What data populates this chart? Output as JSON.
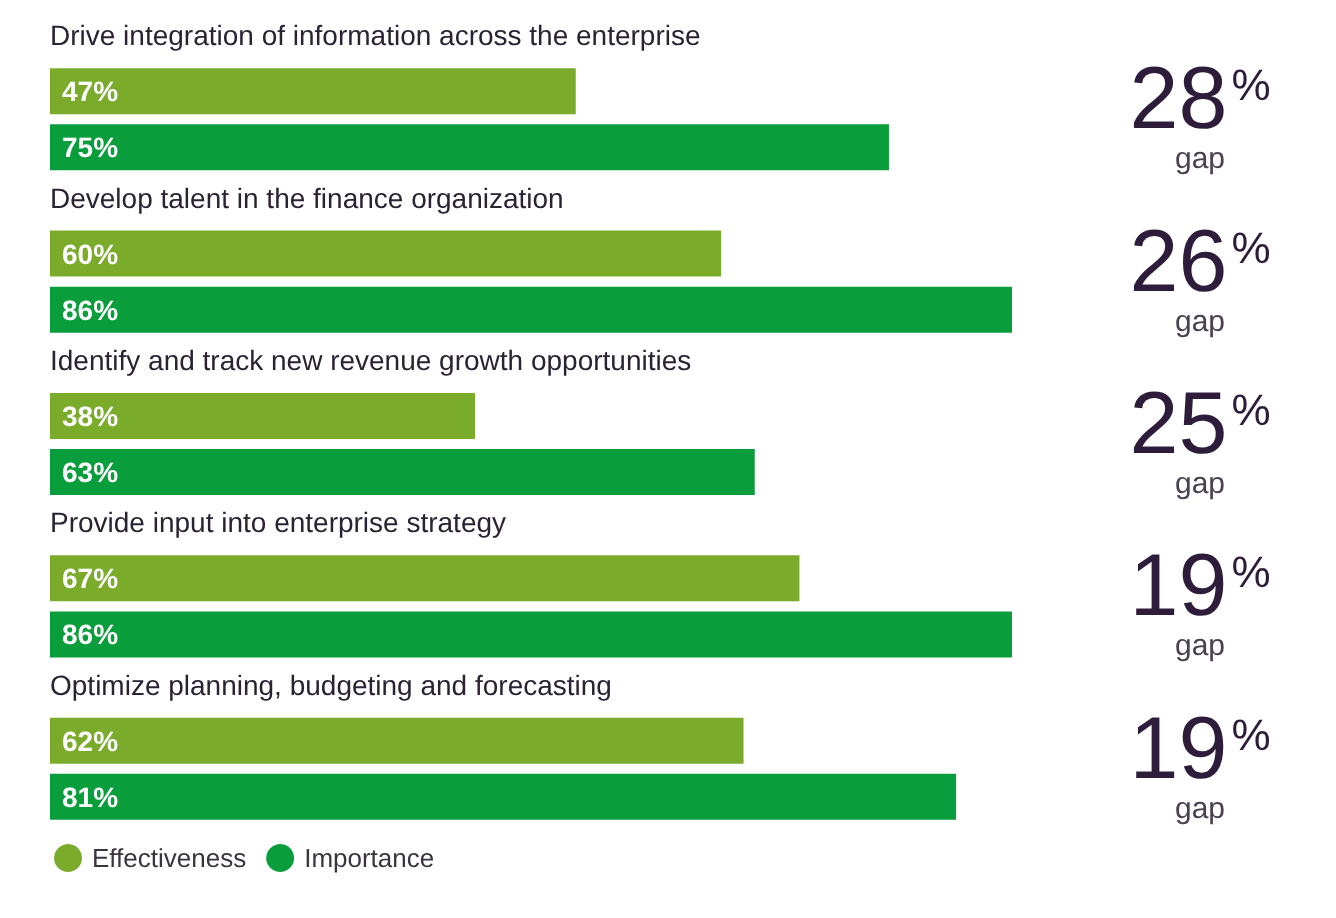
{
  "chart_data": {
    "type": "bar",
    "orientation": "horizontal",
    "categories": [
      "Drive integration of information across the enterprise",
      "Develop talent in the finance organization",
      "Identify and track new revenue growth opportunities",
      "Provide input into enterprise strategy",
      "Optimize planning, budgeting and forecasting"
    ],
    "series": [
      {
        "name": "Effectiveness",
        "color": "#7aab2b",
        "values": [
          47,
          60,
          38,
          67,
          62
        ],
        "value_labels": [
          "47%",
          "60%",
          "38%",
          "67%",
          "62%"
        ]
      },
      {
        "name": "Importance",
        "color": "#0a9d3b",
        "values": [
          75,
          86,
          63,
          86,
          81
        ],
        "value_labels": [
          "75%",
          "86%",
          "63%",
          "86%",
          "81%"
        ]
      }
    ],
    "annotations": [
      "28% gap",
      "26% gap",
      "25% gap",
      "19% gap",
      "19% gap"
    ],
    "legend": "bottom left"
  }
}
